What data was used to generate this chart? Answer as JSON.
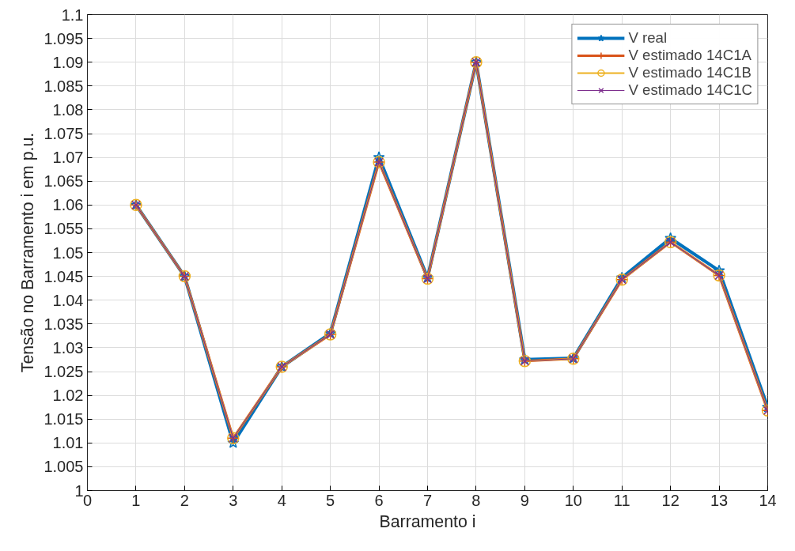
{
  "chart_data": {
    "type": "line",
    "xlabel": "Barramento i",
    "ylabel": "Tensão no Barramento i em p.u.",
    "x": [
      1,
      2,
      3,
      4,
      5,
      6,
      7,
      8,
      9,
      10,
      11,
      12,
      13,
      14
    ],
    "xlim": [
      0,
      14
    ],
    "xticks": [
      0,
      1,
      2,
      3,
      4,
      5,
      6,
      7,
      8,
      9,
      10,
      11,
      12,
      13,
      14
    ],
    "ylim": [
      1,
      1.1
    ],
    "yticks": [
      1,
      1.005,
      1.01,
      1.015,
      1.02,
      1.025,
      1.03,
      1.035,
      1.04,
      1.045,
      1.05,
      1.055,
      1.06,
      1.065,
      1.07,
      1.075,
      1.08,
      1.085,
      1.09,
      1.095,
      1.1
    ],
    "grid": true,
    "legend": "top right",
    "line_style": "solid",
    "series": [
      {
        "name": "V real",
        "color": "#0072bd",
        "marker": "star",
        "values": [
          1.06,
          1.045,
          1.01,
          1.026,
          1.033,
          1.07,
          1.0447,
          1.09,
          1.0275,
          1.0278,
          1.0447,
          1.053,
          1.0462,
          1.0175
        ]
      },
      {
        "name": "V estimado 14C1A",
        "color": "#d95319",
        "marker": "cross",
        "values": [
          1.06,
          1.045,
          1.011,
          1.026,
          1.0328,
          1.069,
          1.0445,
          1.09,
          1.0272,
          1.0277,
          1.0443,
          1.0522,
          1.0452,
          1.0168
        ]
      },
      {
        "name": "V estimado 14C1B",
        "color": "#edb120",
        "marker": "circle",
        "values": [
          1.06,
          1.045,
          1.011,
          1.026,
          1.0328,
          1.069,
          1.0445,
          1.09,
          1.0272,
          1.0277,
          1.0443,
          1.0522,
          1.0452,
          1.0168
        ]
      },
      {
        "name": "V estimado 14C1C",
        "color": "#7e2f8e",
        "marker": "x",
        "values": [
          1.06,
          1.045,
          1.011,
          1.026,
          1.0328,
          1.069,
          1.0445,
          1.09,
          1.0272,
          1.0277,
          1.0443,
          1.0522,
          1.0452,
          1.0168
        ]
      }
    ]
  }
}
